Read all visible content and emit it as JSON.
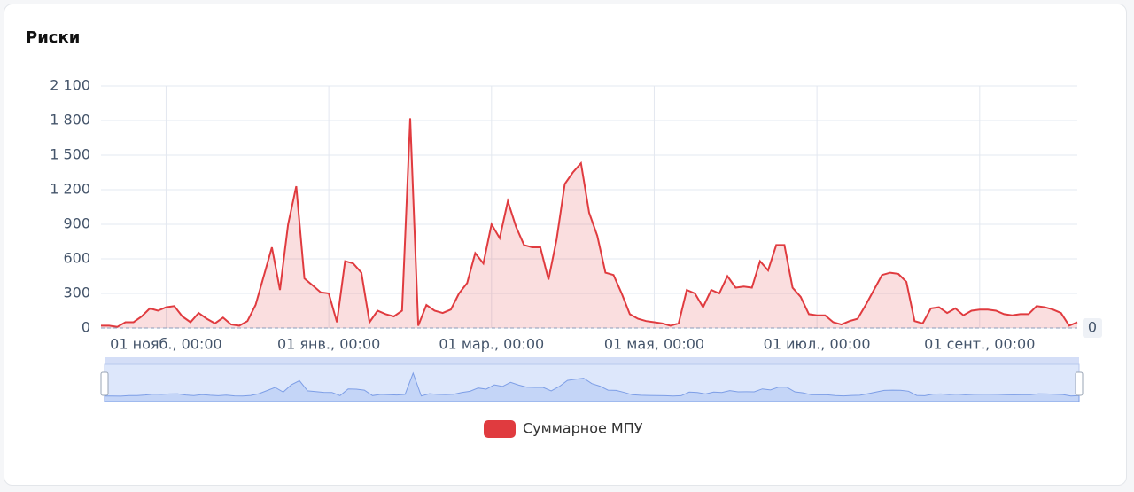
{
  "chart_data": {
    "type": "area",
    "title": "Риски",
    "categories": [
      null,
      null,
      null,
      null,
      null,
      null,
      null,
      null,
      "01 нояб., 00:00",
      null,
      null,
      null,
      null,
      null,
      null,
      null,
      null,
      null,
      null,
      null,
      null,
      null,
      null,
      null,
      null,
      null,
      null,
      null,
      "01 янв., 00:00",
      null,
      null,
      null,
      null,
      null,
      null,
      null,
      null,
      null,
      null,
      null,
      null,
      null,
      null,
      null,
      null,
      null,
      null,
      null,
      "01 мар., 00:00",
      null,
      null,
      null,
      null,
      null,
      null,
      null,
      null,
      null,
      null,
      null,
      null,
      null,
      null,
      null,
      null,
      null,
      null,
      null,
      "01 мая, 00:00",
      null,
      null,
      null,
      null,
      null,
      null,
      null,
      null,
      null,
      null,
      null,
      null,
      null,
      null,
      null,
      null,
      null,
      null,
      null,
      "01 июл., 00:00",
      null,
      null,
      null,
      null,
      null,
      null,
      null,
      null,
      null,
      null,
      null,
      null,
      null,
      null,
      null,
      null,
      null,
      null,
      null,
      "01 сент., 00:00",
      null,
      null,
      null,
      null,
      null,
      null,
      null,
      null,
      null,
      null,
      null,
      null
    ],
    "series": [
      {
        "name": "Суммарное МПУ",
        "color": "#e03b3f",
        "values": [
          20,
          20,
          10,
          50,
          50,
          100,
          170,
          150,
          180,
          190,
          100,
          50,
          130,
          80,
          40,
          90,
          30,
          20,
          60,
          200,
          450,
          700,
          330,
          900,
          1230,
          430,
          370,
          310,
          300,
          50,
          580,
          560,
          480,
          50,
          150,
          120,
          100,
          150,
          1820,
          20,
          200,
          150,
          130,
          160,
          300,
          390,
          650,
          560,
          900,
          780,
          1100,
          880,
          720,
          700,
          700,
          420,
          770,
          1250,
          1350,
          1430,
          1000,
          800,
          480,
          460,
          300,
          120,
          80,
          60,
          50,
          40,
          20,
          40,
          330,
          300,
          180,
          330,
          300,
          450,
          350,
          360,
          350,
          580,
          500,
          720,
          720,
          350,
          270,
          120,
          110,
          110,
          50,
          30,
          60,
          80,
          200,
          330,
          460,
          480,
          470,
          400,
          60,
          40,
          170,
          180,
          130,
          170,
          110,
          150,
          160,
          160,
          150,
          120,
          110,
          120,
          120,
          190,
          180,
          160,
          130,
          20,
          50
        ]
      }
    ],
    "ylim": [
      0,
      2100
    ],
    "yticks": [
      0,
      300,
      600,
      900,
      {
        "value": 1200,
        "label": "1 200"
      },
      {
        "value": 1500,
        "label": "1 500"
      },
      {
        "value": 1800,
        "label": "1 800"
      },
      {
        "value": 2100,
        "label": "2 100"
      }
    ],
    "y2ticks": [
      0
    ],
    "grid": true
  }
}
